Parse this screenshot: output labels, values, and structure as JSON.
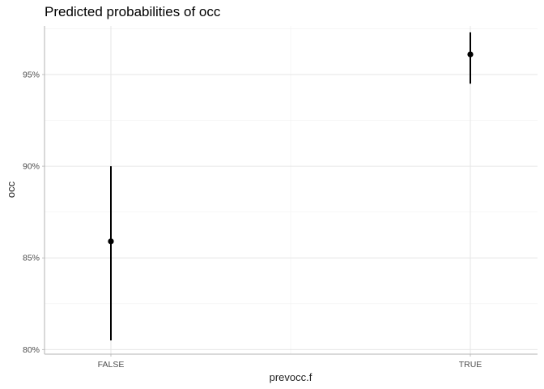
{
  "chart_data": {
    "type": "scatter",
    "title": "Predicted probabilities of occ",
    "xlabel": "prevocc.f",
    "ylabel": "occ",
    "categories": [
      "FALSE",
      "TRUE"
    ],
    "y_ticks": [
      "80%",
      "85%",
      "90%",
      "95%"
    ],
    "ylim": [
      0.7975,
      0.9765
    ],
    "grid": true,
    "points": [
      {
        "x": "FALSE",
        "y": 0.859,
        "ymin": 0.805,
        "ymax": 0.9
      },
      {
        "x": "TRUE",
        "y": 0.961,
        "ymin": 0.945,
        "ymax": 0.973
      }
    ],
    "colors": {
      "point": "#000000",
      "grid_major": "#e6e6e6",
      "grid_minor": "#f2f2f2",
      "axis": "#b3b3b3"
    }
  }
}
